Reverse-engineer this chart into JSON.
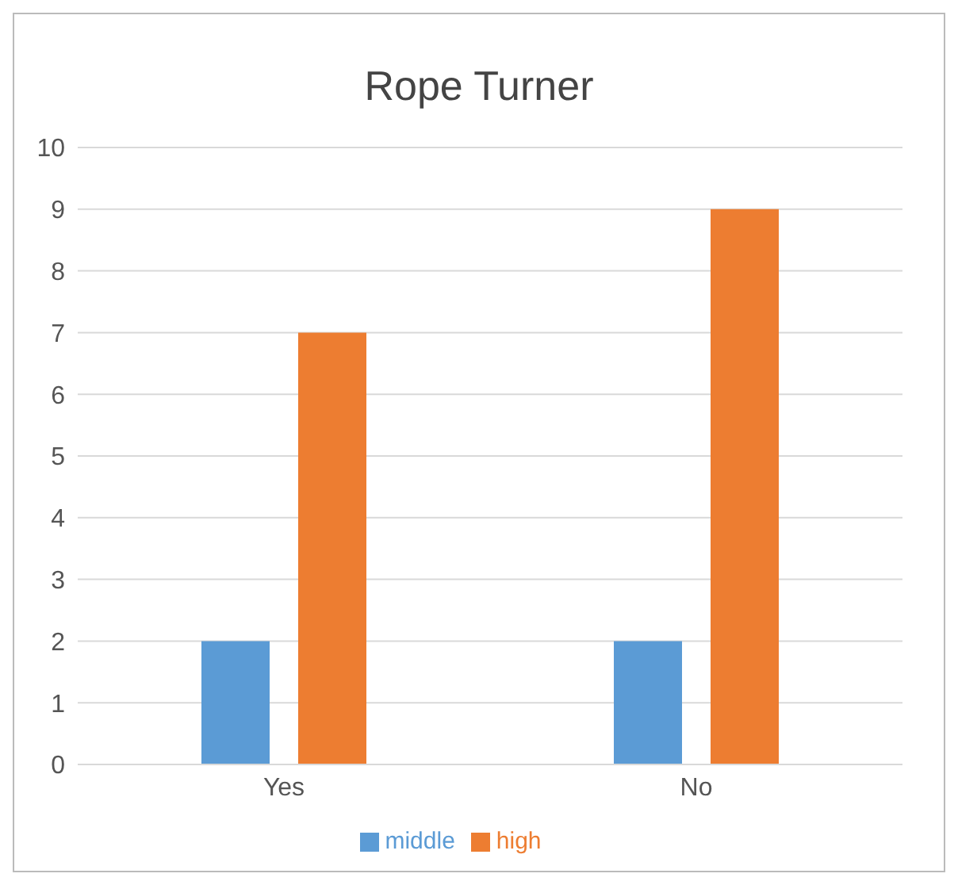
{
  "chart_data": {
    "type": "bar",
    "title": "Rope Turner",
    "categories": [
      "Yes",
      "No"
    ],
    "series": [
      {
        "name": "middle",
        "color": "#5b9bd5",
        "values": [
          2,
          2
        ]
      },
      {
        "name": "high",
        "color": "#ed7d31",
        "values": [
          7,
          9
        ]
      }
    ],
    "ylim": [
      0,
      10
    ],
    "yticks": [
      0,
      1,
      2,
      3,
      4,
      5,
      6,
      7,
      8,
      9,
      10
    ],
    "grid": "y",
    "legend": "bottom"
  }
}
